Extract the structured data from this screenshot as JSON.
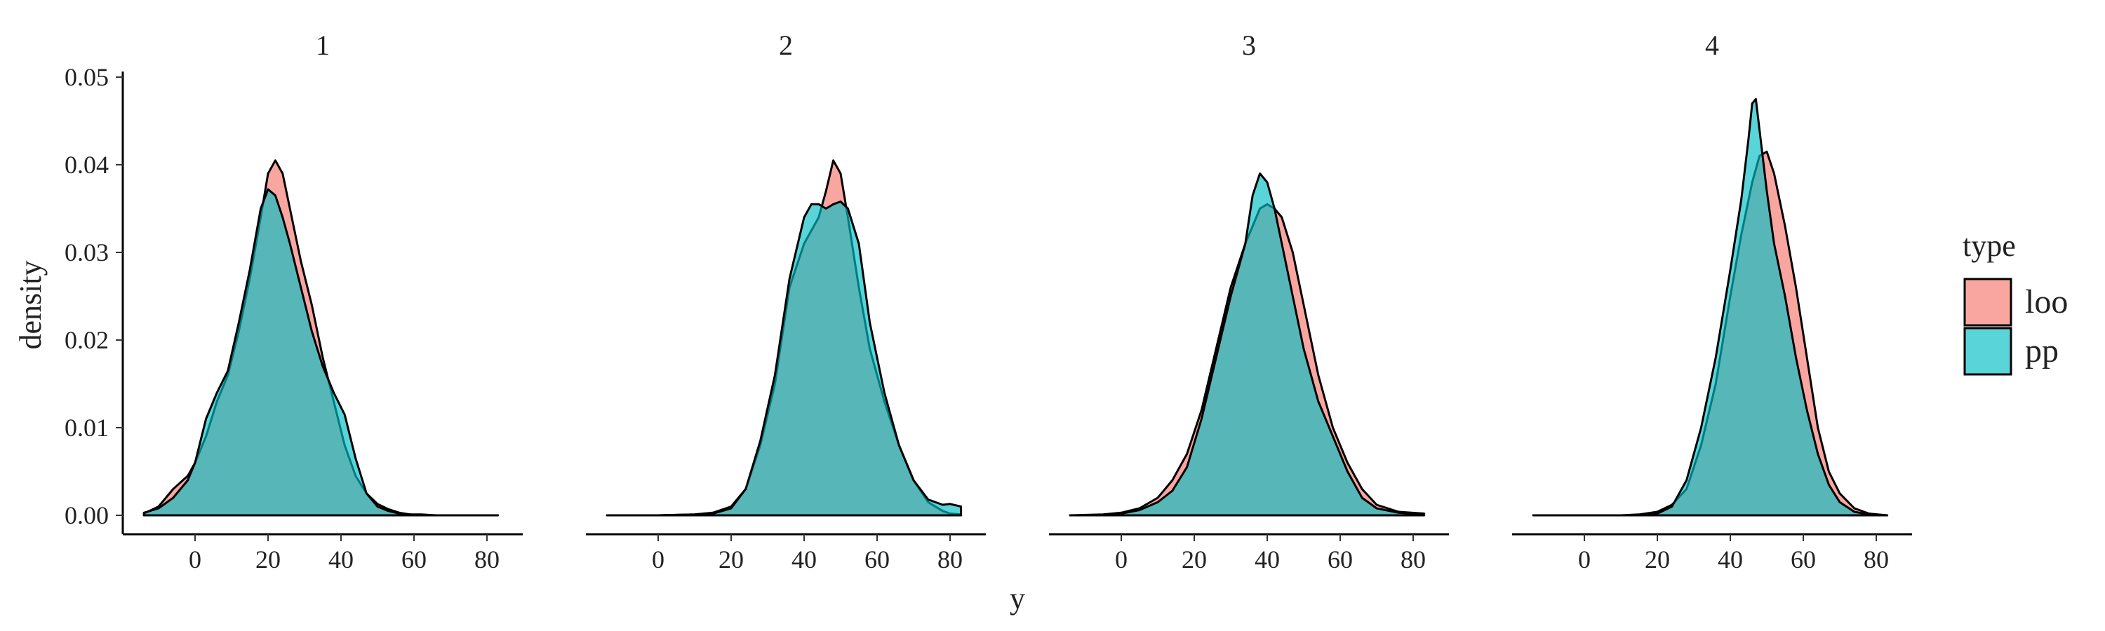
{
  "chart_data": {
    "type": "area",
    "xlabel": "y",
    "ylabel": "density",
    "xlim": [
      -15,
      85
    ],
    "ylim": [
      0,
      0.05
    ],
    "x_ticks": [
      0,
      20,
      40,
      60,
      80
    ],
    "y_ticks": [
      0.0,
      0.01,
      0.02,
      0.03,
      0.04,
      0.05
    ],
    "y_tick_labels": [
      "0.00",
      "0.01",
      "0.02",
      "0.03",
      "0.04",
      "0.05"
    ],
    "facet_variable": "",
    "facets": [
      "1",
      "2",
      "3",
      "4"
    ],
    "legend": {
      "title": "type",
      "placement": "right",
      "entries": [
        {
          "name": "loo",
          "color": "#F8766D"
        },
        {
          "name": "pp",
          "color": "#00BFC4"
        }
      ]
    },
    "fill_opacity": 0.65,
    "panels": [
      {
        "facet": "1",
        "series": [
          {
            "name": "loo",
            "x": [
              -14,
              -10,
              -6,
              -2,
              0,
              3,
              6,
              9,
              12,
              15,
              18,
              20,
              22,
              24,
              26,
              29,
              32,
              35,
              38,
              41,
              44,
              47,
              50,
              53,
              56,
              59,
              62,
              66,
              70,
              76,
              83
            ],
            "y": [
              0.0002,
              0.001,
              0.003,
              0.0045,
              0.006,
              0.009,
              0.013,
              0.016,
              0.021,
              0.027,
              0.034,
              0.039,
              0.0405,
              0.039,
              0.035,
              0.029,
              0.024,
              0.018,
              0.013,
              0.008,
              0.0045,
              0.0025,
              0.0013,
              0.0007,
              0.0003,
              0.0001,
              0.0001,
              0,
              0,
              0,
              0
            ]
          },
          {
            "name": "pp",
            "x": [
              -14,
              -10,
              -6,
              -2,
              0,
              3,
              6,
              9,
              12,
              15,
              18,
              20,
              22,
              24,
              26,
              29,
              32,
              35,
              38,
              41,
              44,
              47,
              50,
              53,
              56,
              59,
              62,
              66,
              70,
              76,
              83
            ],
            "y": [
              0.0003,
              0.0008,
              0.002,
              0.004,
              0.006,
              0.011,
              0.014,
              0.0165,
              0.022,
              0.028,
              0.035,
              0.0372,
              0.0365,
              0.034,
              0.031,
              0.026,
              0.021,
              0.017,
              0.014,
              0.0115,
              0.0065,
              0.0025,
              0.001,
              0.0005,
              0.0002,
              0.0001,
              0,
              0,
              0,
              0,
              0
            ]
          }
        ]
      },
      {
        "facet": "2",
        "series": [
          {
            "name": "loo",
            "x": [
              -14,
              0,
              10,
              15,
              20,
              24,
              28,
              32,
              36,
              40,
              44,
              46,
              48,
              50,
              52,
              55,
              58,
              62,
              66,
              70,
              74,
              78,
              80,
              83
            ],
            "y": [
              0,
              0,
              0.0001,
              0.0003,
              0.001,
              0.003,
              0.008,
              0.015,
              0.026,
              0.031,
              0.034,
              0.037,
              0.0405,
              0.039,
              0.034,
              0.026,
              0.019,
              0.013,
              0.008,
              0.004,
              0.0015,
              0.0005,
              0.0002,
              0.0001
            ]
          },
          {
            "name": "pp",
            "x": [
              -14,
              0,
              10,
              15,
              20,
              24,
              28,
              32,
              36,
              40,
              42,
              44,
              46,
              48,
              50,
              52,
              55,
              58,
              62,
              66,
              70,
              74,
              78,
              80,
              83
            ],
            "y": [
              0,
              0,
              0.0001,
              0.0002,
              0.0008,
              0.003,
              0.0085,
              0.016,
              0.027,
              0.034,
              0.0355,
              0.0355,
              0.035,
              0.0355,
              0.0358,
              0.035,
              0.031,
              0.022,
              0.014,
              0.008,
              0.004,
              0.0018,
              0.0012,
              0.0013,
              0.001
            ]
          }
        ]
      },
      {
        "facet": "3",
        "series": [
          {
            "name": "loo",
            "x": [
              -14,
              -5,
              0,
              5,
              10,
              14,
              18,
              22,
              26,
              30,
              34,
              36,
              38,
              40,
              42,
              44,
              47,
              50,
              54,
              58,
              62,
              66,
              70,
              76,
              83
            ],
            "y": [
              0,
              0.0001,
              0.0003,
              0.0008,
              0.002,
              0.004,
              0.007,
              0.012,
              0.019,
              0.026,
              0.031,
              0.033,
              0.035,
              0.0355,
              0.035,
              0.034,
              0.03,
              0.024,
              0.016,
              0.01,
              0.006,
              0.003,
              0.0012,
              0.0004,
              0.0002
            ]
          },
          {
            "name": "pp",
            "x": [
              -14,
              -5,
              0,
              5,
              10,
              14,
              18,
              22,
              26,
              30,
              34,
              36,
              38,
              40,
              42,
              44,
              47,
              50,
              54,
              58,
              62,
              66,
              70,
              76,
              83
            ],
            "y": [
              0,
              0,
              0.0002,
              0.0006,
              0.0015,
              0.0028,
              0.0055,
              0.011,
              0.018,
              0.025,
              0.031,
              0.0365,
              0.039,
              0.038,
              0.035,
              0.031,
              0.025,
              0.019,
              0.013,
              0.009,
              0.005,
              0.002,
              0.0008,
              0.0003,
              0.0001
            ]
          }
        ]
      },
      {
        "facet": "4",
        "series": [
          {
            "name": "loo",
            "x": [
              -14,
              10,
              15,
              20,
              24,
              28,
              32,
              36,
              40,
              43,
              46,
              48,
              50,
              52,
              55,
              58,
              61,
              64,
              67,
              70,
              74,
              78,
              83
            ],
            "y": [
              0,
              0,
              0.0001,
              0.0004,
              0.0012,
              0.003,
              0.008,
              0.015,
              0.025,
              0.032,
              0.038,
              0.041,
              0.0415,
              0.039,
              0.033,
              0.026,
              0.018,
              0.01,
              0.005,
              0.0025,
              0.0008,
              0.0002,
              0
            ]
          },
          {
            "name": "pp",
            "x": [
              -14,
              10,
              15,
              20,
              24,
              28,
              32,
              36,
              40,
              43,
              45,
              46,
              47,
              48,
              50,
              52,
              55,
              58,
              61,
              64,
              67,
              70,
              74,
              78,
              83
            ],
            "y": [
              0,
              0,
              0,
              0.0002,
              0.001,
              0.004,
              0.01,
              0.018,
              0.028,
              0.036,
              0.043,
              0.047,
              0.0475,
              0.044,
              0.037,
              0.031,
              0.025,
              0.018,
              0.012,
              0.007,
              0.0035,
              0.0015,
              0.0004,
              0.0001,
              0
            ]
          }
        ]
      }
    ]
  }
}
